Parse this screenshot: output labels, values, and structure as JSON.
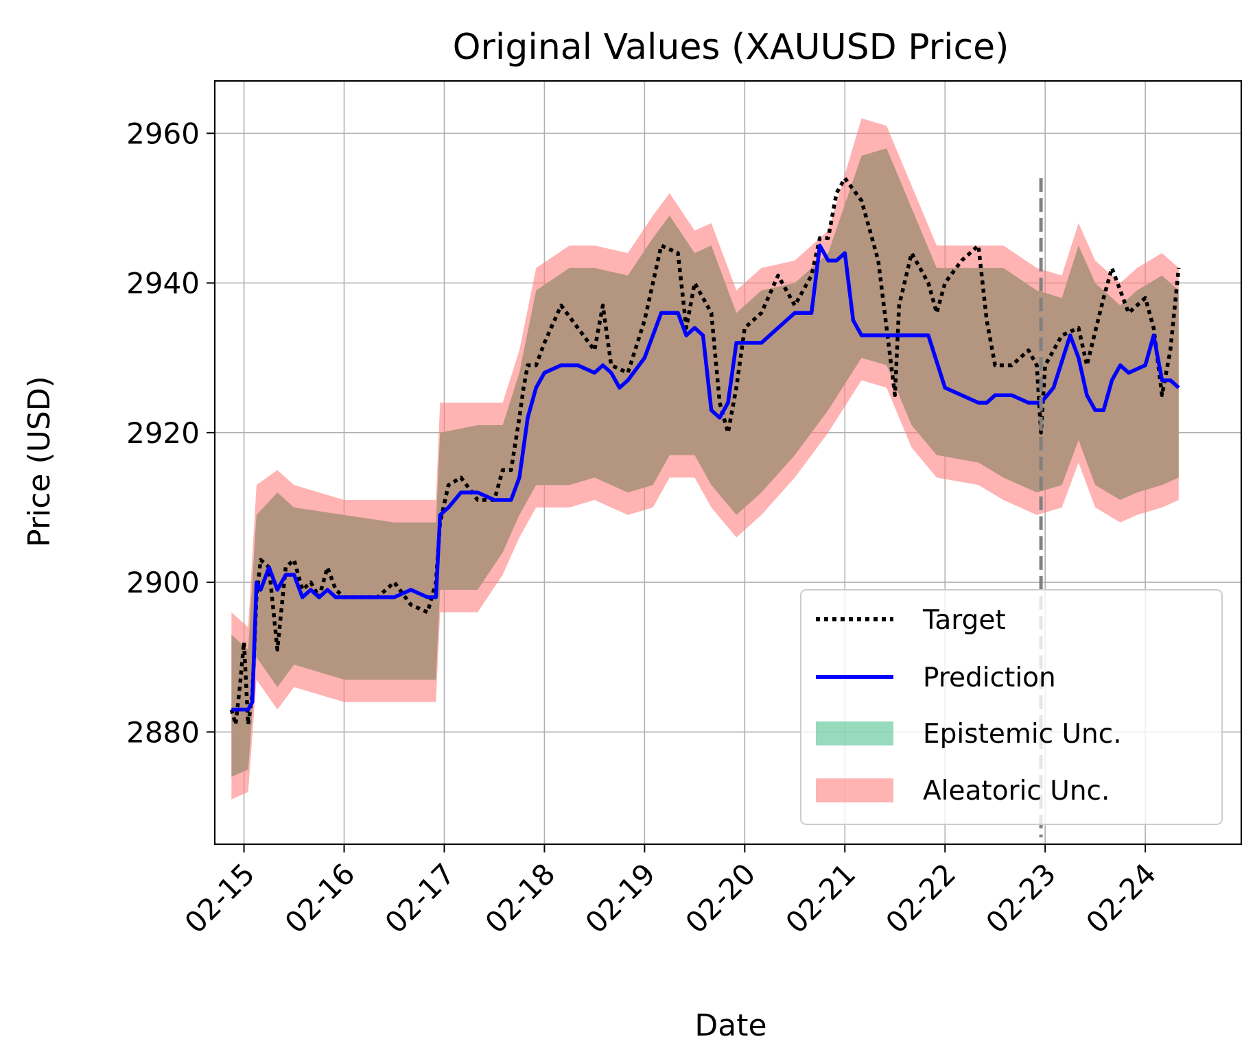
{
  "chart_data": {
    "type": "line",
    "title": "Original Values (XAUUSD Price)",
    "xlabel": "Date",
    "ylabel": "Price (USD)",
    "x_ticks": [
      "02-15",
      "02-16",
      "02-17",
      "02-18",
      "02-19",
      "02-20",
      "02-21",
      "02-22",
      "02-23",
      "02-24"
    ],
    "y_ticks": [
      2880,
      2900,
      2920,
      2940,
      2960
    ],
    "xlim": [
      "02-14 17:00",
      "02-24 23:00"
    ],
    "ylim": [
      2865,
      2967
    ],
    "grid": true,
    "legend_position": "lower-right",
    "forecast_start": "02-22 23:00",
    "legend": [
      "Target",
      "Prediction",
      "Epistemic Unc.",
      "Aleatoric Unc."
    ],
    "colors": {
      "target": "#000000",
      "prediction": "#0000ff",
      "epistemic": "#2fb57a",
      "aleatoric": "#ff8080",
      "band_overlap": "#b49580",
      "forecast_line": "#808080"
    },
    "series": [
      {
        "name": "Target",
        "style": "dotted",
        "x": [
          "02-14 21:00",
          "02-14 22:00",
          "02-14 23:00",
          "02-15 00:00",
          "02-15 01:00",
          "02-15 02:00",
          "02-15 03:00",
          "02-15 04:00",
          "02-15 06:00",
          "02-15 08:00",
          "02-15 10:00",
          "02-15 12:00",
          "02-15 14:00",
          "02-15 16:00",
          "02-15 18:00",
          "02-15 20:00",
          "02-15 22:00",
          "02-16 00:00",
          "02-16 04:00",
          "02-16 08:00",
          "02-16 12:00",
          "02-16 16:00",
          "02-16 20:00",
          "02-16 22:00",
          "02-16 23:00",
          "02-17 01:00",
          "02-17 04:00",
          "02-17 08:00",
          "02-17 12:00",
          "02-17 14:00",
          "02-17 16:00",
          "02-17 18:00",
          "02-17 19:00",
          "02-17 20:00",
          "02-17 22:00",
          "02-18 00:00",
          "02-18 04:00",
          "02-18 08:00",
          "02-18 12:00",
          "02-18 14:00",
          "02-18 16:00",
          "02-18 20:00",
          "02-19 00:00",
          "02-19 04:00",
          "02-19 08:00",
          "02-19 10:00",
          "02-19 12:00",
          "02-19 16:00",
          "02-19 18:00",
          "02-19 20:00",
          "02-19 22:00",
          "02-20 00:00",
          "02-20 04:00",
          "02-20 08:00",
          "02-20 12:00",
          "02-20 16:00",
          "02-20 18:00",
          "02-20 20:00",
          "02-20 22:00",
          "02-21 00:00",
          "02-21 04:00",
          "02-21 08:00",
          "02-21 10:00",
          "02-21 12:00",
          "02-21 13:00",
          "02-21 16:00",
          "02-21 20:00",
          "02-21 22:00",
          "02-22 00:00",
          "02-22 04:00",
          "02-22 08:00",
          "02-22 10:00",
          "02-22 12:00",
          "02-22 16:00",
          "02-22 20:00",
          "02-22 22:00",
          "02-22 23:00",
          "02-23 00:00",
          "02-23 04:00",
          "02-23 08:00",
          "02-23 10:00",
          "02-23 14:00",
          "02-23 16:00",
          "02-23 20:00",
          "02-24 00:00",
          "02-24 02:00",
          "02-24 04:00",
          "02-24 06:00",
          "02-24 08:00"
        ],
        "values": [
          2883,
          2881,
          2886,
          2892,
          2881,
          2885,
          2898,
          2903,
          2902,
          2891,
          2902,
          2903,
          2899,
          2900,
          2898,
          2902,
          2899,
          2898,
          2898,
          2898,
          2900,
          2897,
          2896,
          2900,
          2908,
          2913,
          2914,
          2911,
          2911,
          2915,
          2915,
          2922,
          2926,
          2929,
          2929,
          2932,
          2937,
          2934,
          2931,
          2937,
          2929,
          2928,
          2935,
          2945,
          2944,
          2934,
          2940,
          2936,
          2924,
          2920,
          2926,
          2934,
          2936,
          2941,
          2937,
          2941,
          2946,
          2946,
          2952,
          2954,
          2951,
          2943,
          2934,
          2925,
          2937,
          2944,
          2940,
          2936,
          2940,
          2943,
          2945,
          2935,
          2929,
          2929,
          2931,
          2929,
          2920,
          2929,
          2933,
          2934,
          2929,
          2938,
          2942,
          2936,
          2938,
          2934,
          2925,
          2931,
          2942
        ]
      },
      {
        "name": "Prediction",
        "style": "solid",
        "x": [
          "02-14 21:00",
          "02-14 23:00",
          "02-15 01:00",
          "02-15 02:00",
          "02-15 03:00",
          "02-15 04:00",
          "02-15 06:00",
          "02-15 08:00",
          "02-15 10:00",
          "02-15 12:00",
          "02-15 14:00",
          "02-15 16:00",
          "02-15 18:00",
          "02-15 20:00",
          "02-15 22:00",
          "02-16 00:00",
          "02-16 04:00",
          "02-16 08:00",
          "02-16 12:00",
          "02-16 16:00",
          "02-16 20:00",
          "02-16 22:00",
          "02-16 23:00",
          "02-17 01:00",
          "02-17 04:00",
          "02-17 08:00",
          "02-17 12:00",
          "02-17 14:00",
          "02-17 16:00",
          "02-17 18:00",
          "02-17 20:00",
          "02-17 22:00",
          "02-18 00:00",
          "02-18 04:00",
          "02-18 08:00",
          "02-18 12:00",
          "02-18 14:00",
          "02-18 16:00",
          "02-18 18:00",
          "02-18 20:00",
          "02-19 00:00",
          "02-19 04:00",
          "02-19 08:00",
          "02-19 10:00",
          "02-19 12:00",
          "02-19 14:00",
          "02-19 16:00",
          "02-19 18:00",
          "02-19 20:00",
          "02-19 22:00",
          "02-20 00:00",
          "02-20 04:00",
          "02-20 08:00",
          "02-20 12:00",
          "02-20 16:00",
          "02-20 18:00",
          "02-20 20:00",
          "02-20 22:00",
          "02-21 00:00",
          "02-21 02:00",
          "02-21 04:00",
          "02-21 06:00",
          "02-21 08:00",
          "02-21 10:00",
          "02-21 12:00",
          "02-21 14:00",
          "02-21 16:00",
          "02-21 18:00",
          "02-21 20:00",
          "02-22 00:00",
          "02-22 04:00",
          "02-22 08:00",
          "02-22 10:00",
          "02-22 12:00",
          "02-22 16:00",
          "02-22 20:00",
          "02-22 23:00",
          "02-23 02:00",
          "02-23 06:00",
          "02-23 08:00",
          "02-23 10:00",
          "02-23 12:00",
          "02-23 14:00",
          "02-23 16:00",
          "02-23 18:00",
          "02-23 20:00",
          "02-24 00:00",
          "02-24 02:00",
          "02-24 04:00",
          "02-24 06:00",
          "02-24 08:00"
        ],
        "values": [
          2883,
          2883,
          2883,
          2884,
          2900,
          2899,
          2902,
          2899,
          2901,
          2901,
          2898,
          2899,
          2898,
          2899,
          2898,
          2898,
          2898,
          2898,
          2898,
          2899,
          2898,
          2898,
          2909,
          2910,
          2912,
          2912,
          2911,
          2911,
          2911,
          2914,
          2922,
          2926,
          2928,
          2929,
          2929,
          2928,
          2929,
          2928,
          2926,
          2927,
          2930,
          2936,
          2936,
          2933,
          2934,
          2933,
          2923,
          2922,
          2924,
          2932,
          2932,
          2932,
          2934,
          2936,
          2936,
          2945,
          2943,
          2943,
          2944,
          2935,
          2933,
          2933,
          2933,
          2933,
          2933,
          2933,
          2933,
          2933,
          2933,
          2926,
          2925,
          2924,
          2924,
          2925,
          2925,
          2924,
          2924,
          2926,
          2933,
          2930,
          2925,
          2923,
          2923,
          2927,
          2929,
          2928,
          2929,
          2933,
          2927,
          2927,
          2926
        ]
      }
    ],
    "epistemic_band": {
      "x": [
        "02-14 21:00",
        "02-15 01:00",
        "02-15 03:00",
        "02-15 08:00",
        "02-15 12:00",
        "02-16 00:00",
        "02-16 12:00",
        "02-16 22:00",
        "02-16 23:00",
        "02-17 08:00",
        "02-17 14:00",
        "02-17 18:00",
        "02-17 22:00",
        "02-18 06:00",
        "02-18 12:00",
        "02-18 20:00",
        "02-19 02:00",
        "02-19 06:00",
        "02-19 12:00",
        "02-19 16:00",
        "02-19 22:00",
        "02-20 04:00",
        "02-20 12:00",
        "02-20 20:00",
        "02-21 04:00",
        "02-21 10:00",
        "02-21 16:00",
        "02-21 22:00",
        "02-22 08:00",
        "02-22 14:00",
        "02-22 22:00",
        "02-23 04:00",
        "02-23 08:00",
        "02-23 12:00",
        "02-23 18:00",
        "02-23 22:00",
        "02-24 04:00",
        "02-24 08:00"
      ],
      "upper": [
        2893,
        2891,
        2909,
        2912,
        2910,
        2909,
        2908,
        2908,
        2920,
        2921,
        2921,
        2928,
        2939,
        2942,
        2942,
        2941,
        2946,
        2949,
        2944,
        2945,
        2936,
        2939,
        2940,
        2944,
        2957,
        2958,
        2950,
        2942,
        2942,
        2942,
        2939,
        2938,
        2945,
        2940,
        2937,
        2939,
        2941,
        2939
      ],
      "lower": [
        2874,
        2875,
        2890,
        2886,
        2889,
        2887,
        2887,
        2887,
        2899,
        2899,
        2904,
        2909,
        2913,
        2913,
        2914,
        2912,
        2913,
        2917,
        2917,
        2913,
        2909,
        2912,
        2917,
        2923,
        2930,
        2929,
        2921,
        2917,
        2916,
        2914,
        2912,
        2913,
        2919,
        2913,
        2911,
        2912,
        2913,
        2914
      ]
    },
    "aleatoric_band": {
      "x": [
        "02-14 21:00",
        "02-15 01:00",
        "02-15 03:00",
        "02-15 08:00",
        "02-15 12:00",
        "02-16 00:00",
        "02-16 12:00",
        "02-16 22:00",
        "02-16 23:00",
        "02-17 08:00",
        "02-17 14:00",
        "02-17 18:00",
        "02-17 22:00",
        "02-18 06:00",
        "02-18 12:00",
        "02-18 20:00",
        "02-19 02:00",
        "02-19 06:00",
        "02-19 12:00",
        "02-19 16:00",
        "02-19 22:00",
        "02-20 04:00",
        "02-20 12:00",
        "02-20 20:00",
        "02-21 04:00",
        "02-21 10:00",
        "02-21 16:00",
        "02-21 22:00",
        "02-22 08:00",
        "02-22 14:00",
        "02-22 22:00",
        "02-23 04:00",
        "02-23 08:00",
        "02-23 12:00",
        "02-23 18:00",
        "02-23 22:00",
        "02-24 04:00",
        "02-24 08:00"
      ],
      "upper": [
        2896,
        2894,
        2913,
        2915,
        2913,
        2911,
        2911,
        2911,
        2924,
        2924,
        2924,
        2931,
        2942,
        2945,
        2945,
        2944,
        2949,
        2952,
        2947,
        2948,
        2939,
        2942,
        2943,
        2947,
        2962,
        2961,
        2953,
        2945,
        2945,
        2945,
        2942,
        2941,
        2948,
        2943,
        2940,
        2942,
        2944,
        2942
      ],
      "lower": [
        2871,
        2872,
        2887,
        2883,
        2886,
        2884,
        2884,
        2884,
        2896,
        2896,
        2901,
        2906,
        2910,
        2910,
        2911,
        2909,
        2910,
        2914,
        2914,
        2910,
        2906,
        2909,
        2914,
        2920,
        2927,
        2926,
        2918,
        2914,
        2913,
        2911,
        2909,
        2910,
        2916,
        2910,
        2908,
        2909,
        2910,
        2911
      ]
    }
  }
}
